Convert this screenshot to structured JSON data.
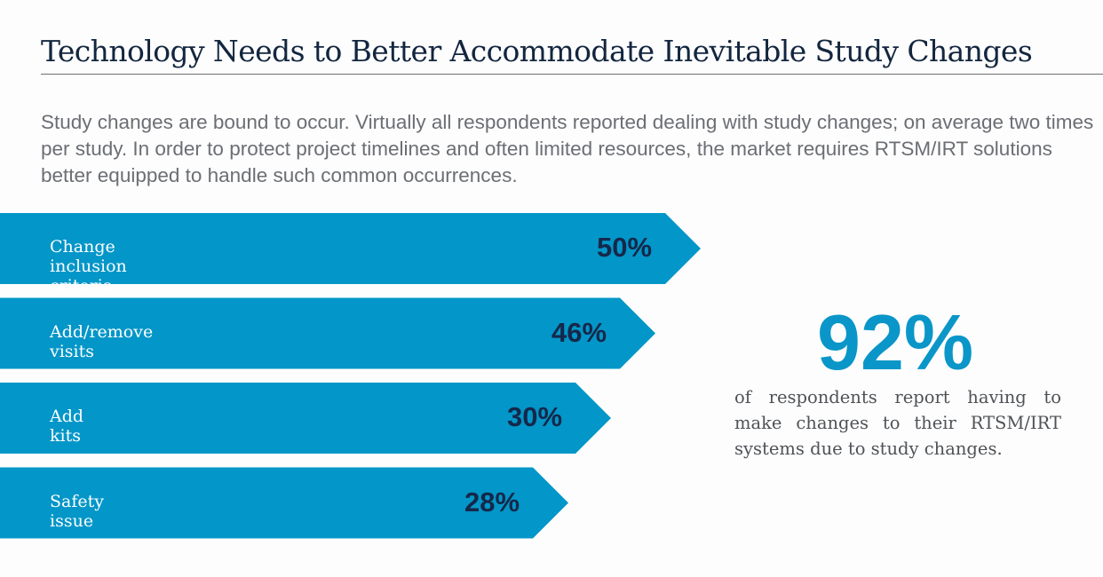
{
  "title": "Technology Needs to Better Accommodate Inevitable Study Changes",
  "intro": "Study changes are bound to occur. Virtually all respondents reported dealing with study changes; on average two times per study. In order to protect project timelines and often limited resources, the market requires RTSM/IRT solutions better equipped to handle such common occurrences.",
  "chart_data": {
    "type": "bar",
    "orientation": "horizontal",
    "categories": [
      "Change inclusion criteria",
      "Add/remove visits",
      "Add kits",
      "Safety issue"
    ],
    "values": [
      50,
      46,
      30,
      28
    ],
    "value_labels": [
      "50%",
      "46%",
      "30%",
      "28%"
    ],
    "bar_color": "#0396c8"
  },
  "callout": {
    "value": "92%",
    "text": "of respondents report having to make changes to their RTSM/IRT systems due to study changes."
  }
}
